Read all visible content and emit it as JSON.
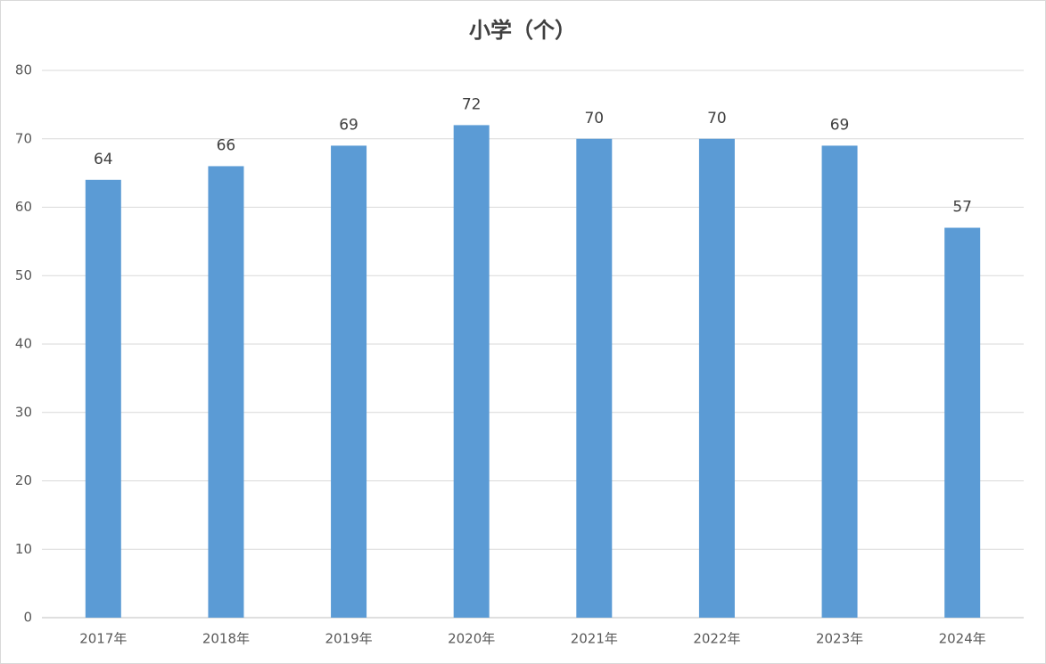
{
  "chart_data": {
    "type": "bar",
    "title": "小学（个）",
    "categories": [
      "2017年",
      "2018年",
      "2019年",
      "2020年",
      "2021年",
      "2022年",
      "2023年",
      "2024年"
    ],
    "values": [
      64,
      66,
      69,
      72,
      70,
      70,
      69,
      57
    ],
    "color": "#5b9bd5",
    "ylim": [
      0,
      80
    ],
    "yticks": [
      0,
      10,
      20,
      30,
      40,
      50,
      60,
      70,
      80
    ],
    "grid": true
  }
}
